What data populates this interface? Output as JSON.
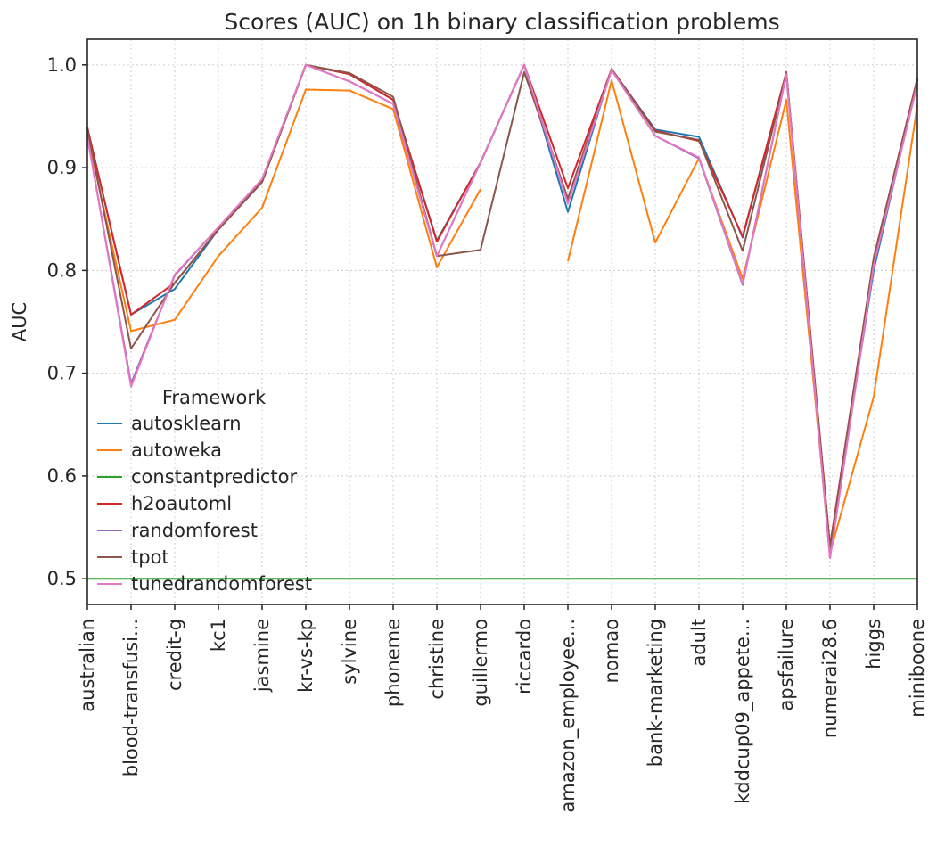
{
  "chart_data": {
    "type": "line",
    "title": "Scores (AUC) on 1h binary classification problems",
    "xlabel": "",
    "ylabel": "AUC",
    "ylim": [
      0.475,
      1.025
    ],
    "yticks": [
      "0.5",
      "0.6",
      "0.7",
      "0.8",
      "0.9",
      "1.0"
    ],
    "grid": true,
    "legend_title": "Framework",
    "legend_position": "lower-left",
    "categories": [
      "australian",
      "blood-transfusi...",
      "credit-g",
      "kc1",
      "jasmine",
      "kr-vs-kp",
      "sylvine",
      "phoneme",
      "christine",
      "guillermo",
      "riccardo",
      "amazon_employee...",
      "nomao",
      "bank-marketing",
      "adult",
      "kddcup09_appete...",
      "apsfailure",
      "numerai28.6",
      "higgs",
      "miniboone"
    ],
    "series": [
      {
        "name": "autosklearn",
        "color": "#1f77b4",
        "values": [
          0.939,
          0.757,
          0.782,
          0.84,
          0.886,
          1.0,
          0.991,
          0.966,
          0.829,
          0.905,
          1.0,
          0.857,
          0.996,
          0.937,
          0.93,
          0.832,
          0.992,
          0.53,
          0.8,
          0.985
        ]
      },
      {
        "name": "autoweka",
        "color": "#ff7f0e",
        "values": [
          0.932,
          0.741,
          0.752,
          0.814,
          0.861,
          0.976,
          0.975,
          0.957,
          0.803,
          0.879,
          null,
          0.809,
          0.985,
          0.827,
          0.909,
          0.792,
          0.966,
          0.525,
          0.677,
          0.961
        ]
      },
      {
        "name": "constantpredictor",
        "color": "#2ca02c",
        "values": [
          0.5,
          0.5,
          0.5,
          0.5,
          0.5,
          0.5,
          0.5,
          0.5,
          0.5,
          0.5,
          0.5,
          0.5,
          0.5,
          0.5,
          0.5,
          0.5,
          0.5,
          0.5,
          0.5,
          0.5
        ]
      },
      {
        "name": "h2oautoml",
        "color": "#d62728",
        "values": [
          0.939,
          0.757,
          0.788,
          0.84,
          0.886,
          1.0,
          0.991,
          0.966,
          0.828,
          0.905,
          1.0,
          0.88,
          0.996,
          0.936,
          0.926,
          0.833,
          0.993,
          0.532,
          0.812,
          0.987
        ]
      },
      {
        "name": "randomforest",
        "color": "#9467bd",
        "values": [
          0.93,
          0.69,
          0.795,
          0.842,
          0.888,
          1.0,
          0.984,
          0.962,
          0.814,
          0.905,
          1.0,
          0.867,
          0.995,
          0.931,
          0.909,
          0.786,
          0.991,
          0.52,
          0.805,
          0.982
        ]
      },
      {
        "name": "tpot",
        "color": "#8c564b",
        "values": [
          0.938,
          0.724,
          0.788,
          0.84,
          0.886,
          1.0,
          0.992,
          0.969,
          0.814,
          0.82,
          0.993,
          0.87,
          0.996,
          0.935,
          0.927,
          0.819,
          0.992,
          0.53,
          0.812,
          0.986
        ]
      },
      {
        "name": "tunedrandomforest",
        "color": "#e377c2",
        "values": [
          0.93,
          0.687,
          0.796,
          0.842,
          0.889,
          1.0,
          0.984,
          0.962,
          0.814,
          0.905,
          1.0,
          0.865,
          0.995,
          0.931,
          0.91,
          0.787,
          0.991,
          0.52,
          0.805,
          0.982
        ]
      }
    ]
  }
}
